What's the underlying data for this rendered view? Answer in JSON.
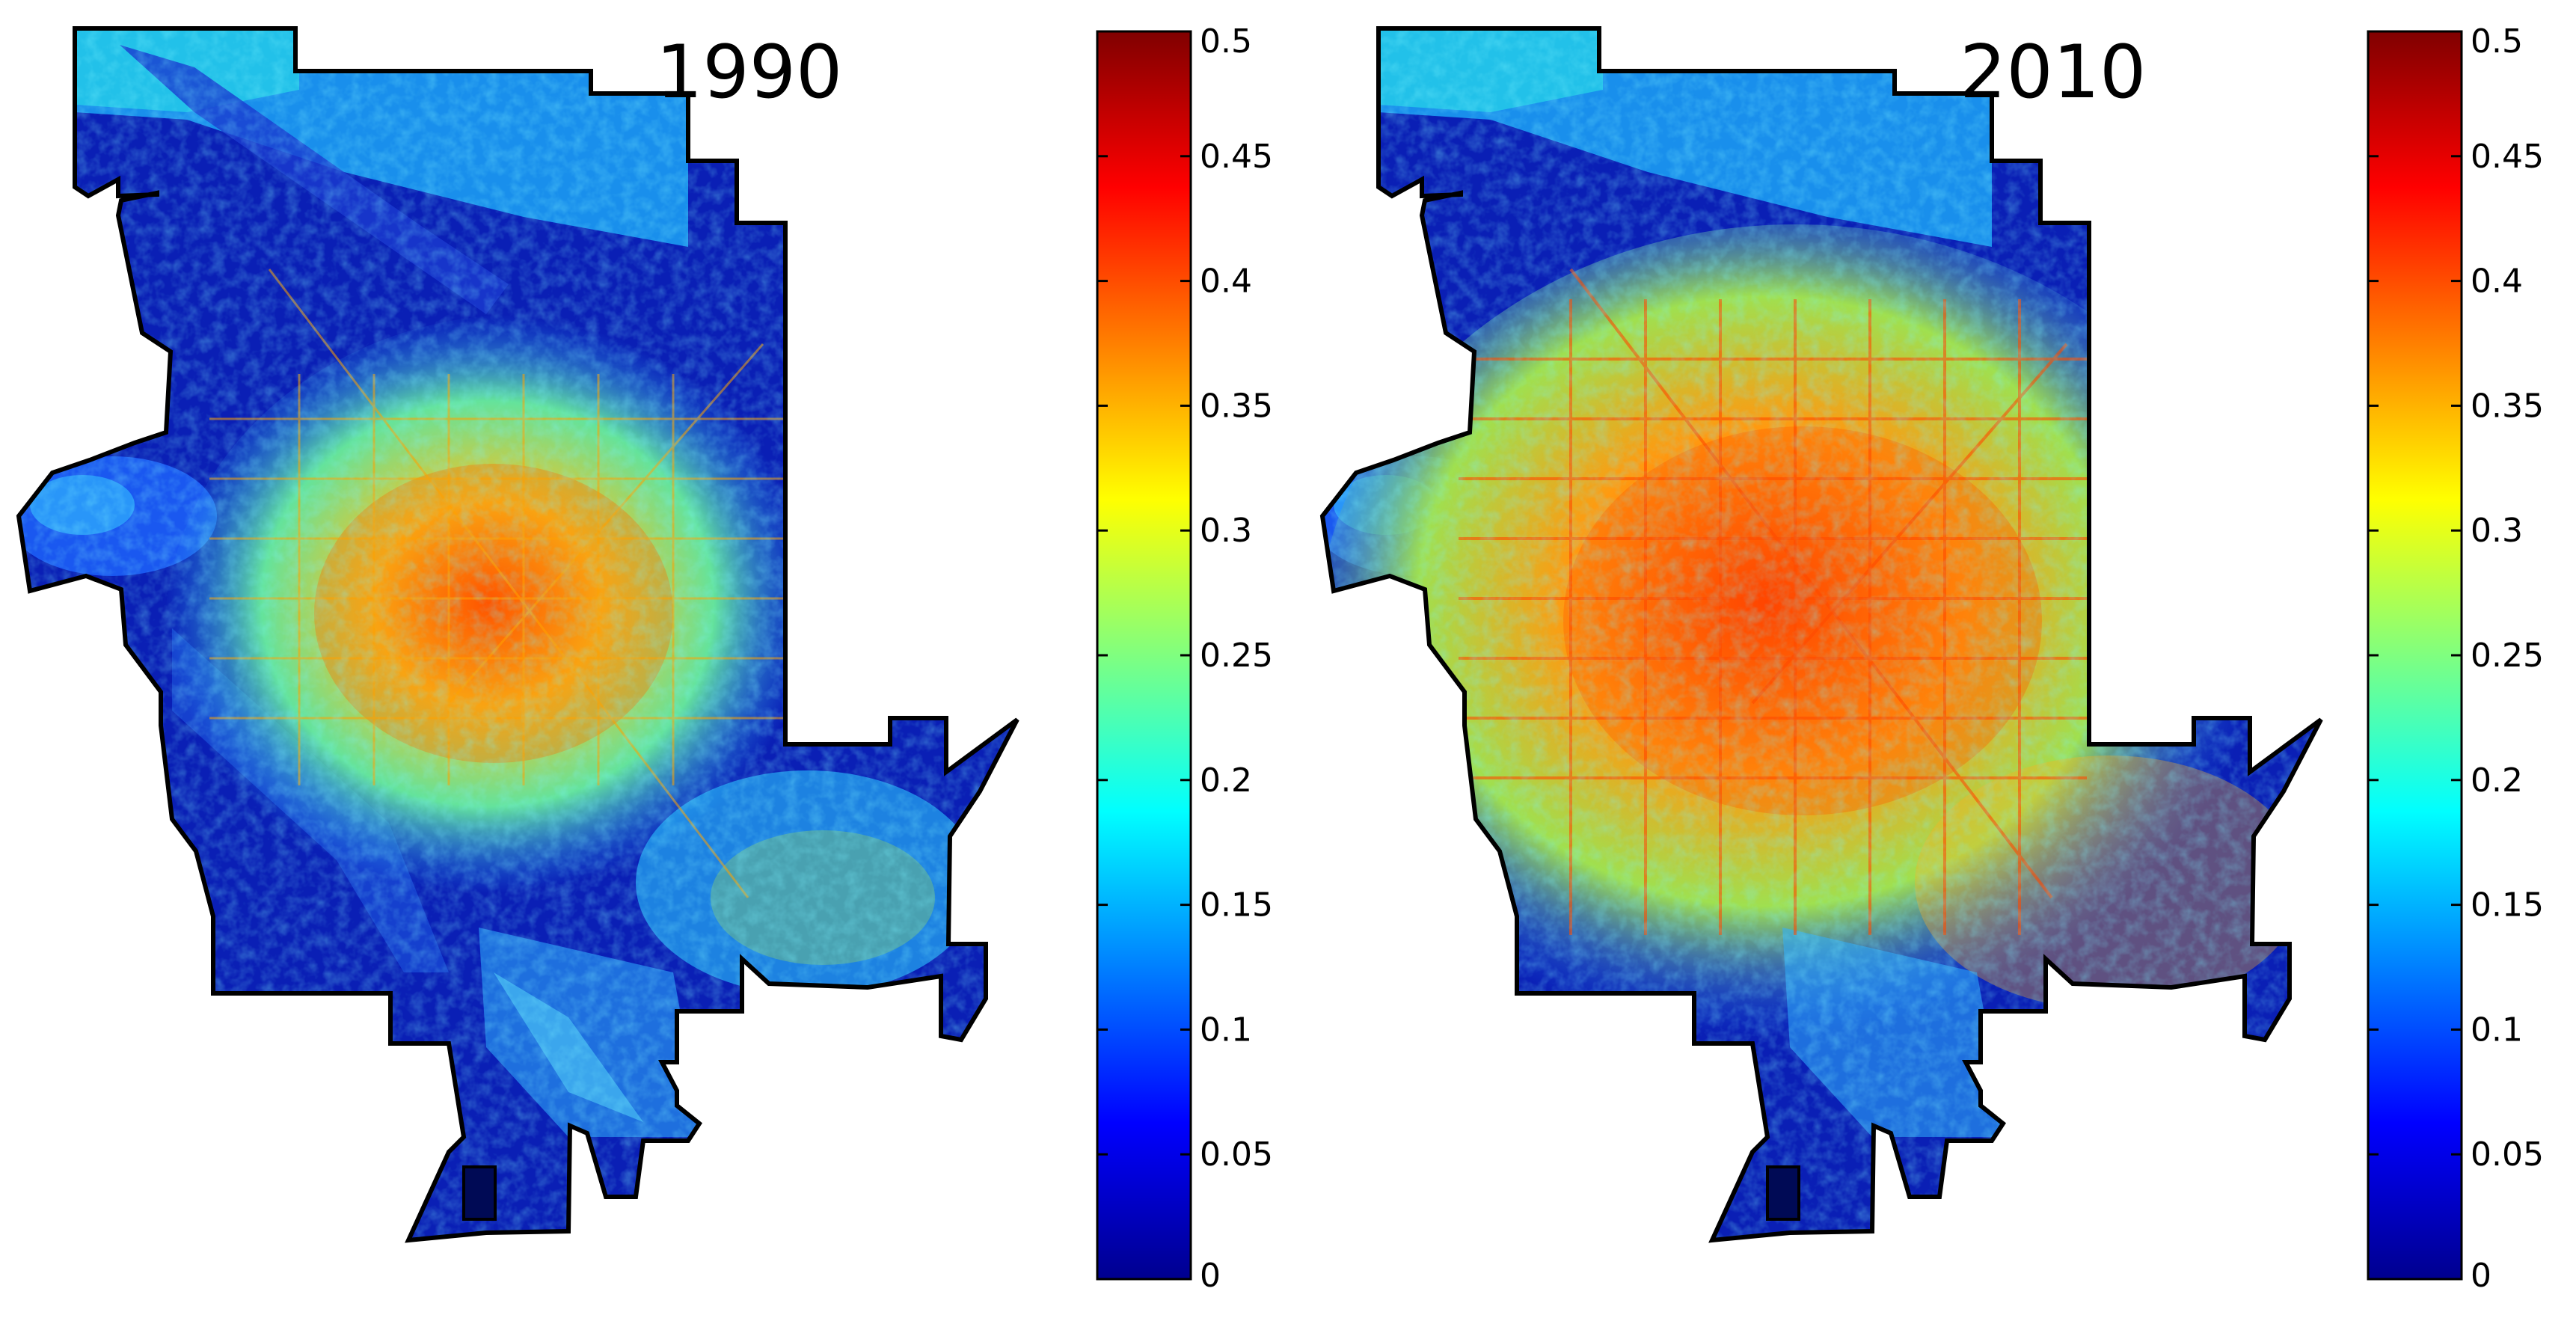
{
  "figure": {
    "panels": [
      {
        "id": "left",
        "title": "1990",
        "colorbar": {
          "range": [
            0,
            0.5
          ],
          "ticks": [
            "0.5",
            "0.45",
            "0.4",
            "0.35",
            "0.3",
            "0.25",
            "0.2",
            "0.15",
            "0.1",
            "0.05",
            "0"
          ]
        }
      },
      {
        "id": "right",
        "title": "2010",
        "colorbar": {
          "range": [
            0,
            0.5
          ],
          "ticks": [
            "0.5",
            "0.45",
            "0.4",
            "0.35",
            "0.3",
            "0.25",
            "0.2",
            "0.15",
            "0.1",
            "0.05",
            "0"
          ]
        }
      }
    ],
    "colormap": "jet",
    "colors": {
      "background": "#ffffff",
      "outline": "#000000",
      "lowest": "#00008f",
      "low": "#1e4fff",
      "mid": "#23e6d6",
      "high": "#ffd21e",
      "highest": "#d81a00",
      "max": "#800000"
    }
  }
}
